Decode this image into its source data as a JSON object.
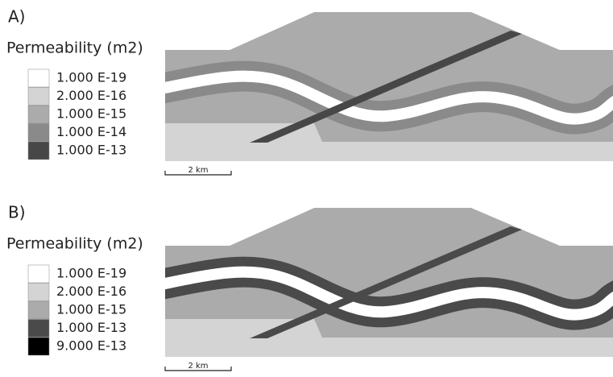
{
  "panels": [
    {
      "label": "A)",
      "legend_title": "Permeability (m2)",
      "legend": [
        {
          "label": "1.000 E-19",
          "color": "#ffffff"
        },
        {
          "label": "2.000 E-16",
          "color": "#d4d4d4"
        },
        {
          "label": "1.000 E-15",
          "color": "#ababab"
        },
        {
          "label": "1.000 E-14",
          "color": "#8a8a8a"
        },
        {
          "label": "1.000 E-13",
          "color": "#474747"
        }
      ],
      "scale_bar": "2 km"
    },
    {
      "label": "B)",
      "legend_title": "Permeability (m2)",
      "legend": [
        {
          "label": "1.000 E-19",
          "color": "#ffffff"
        },
        {
          "label": "2.000 E-16",
          "color": "#d4d4d4"
        },
        {
          "label": "1.000 E-15",
          "color": "#ababab"
        },
        {
          "label": "1.000 E-13",
          "color": "#4a4a4a"
        },
        {
          "label": "9.000 E-13",
          "color": "#000000"
        }
      ],
      "scale_bar": "2 km"
    }
  ]
}
